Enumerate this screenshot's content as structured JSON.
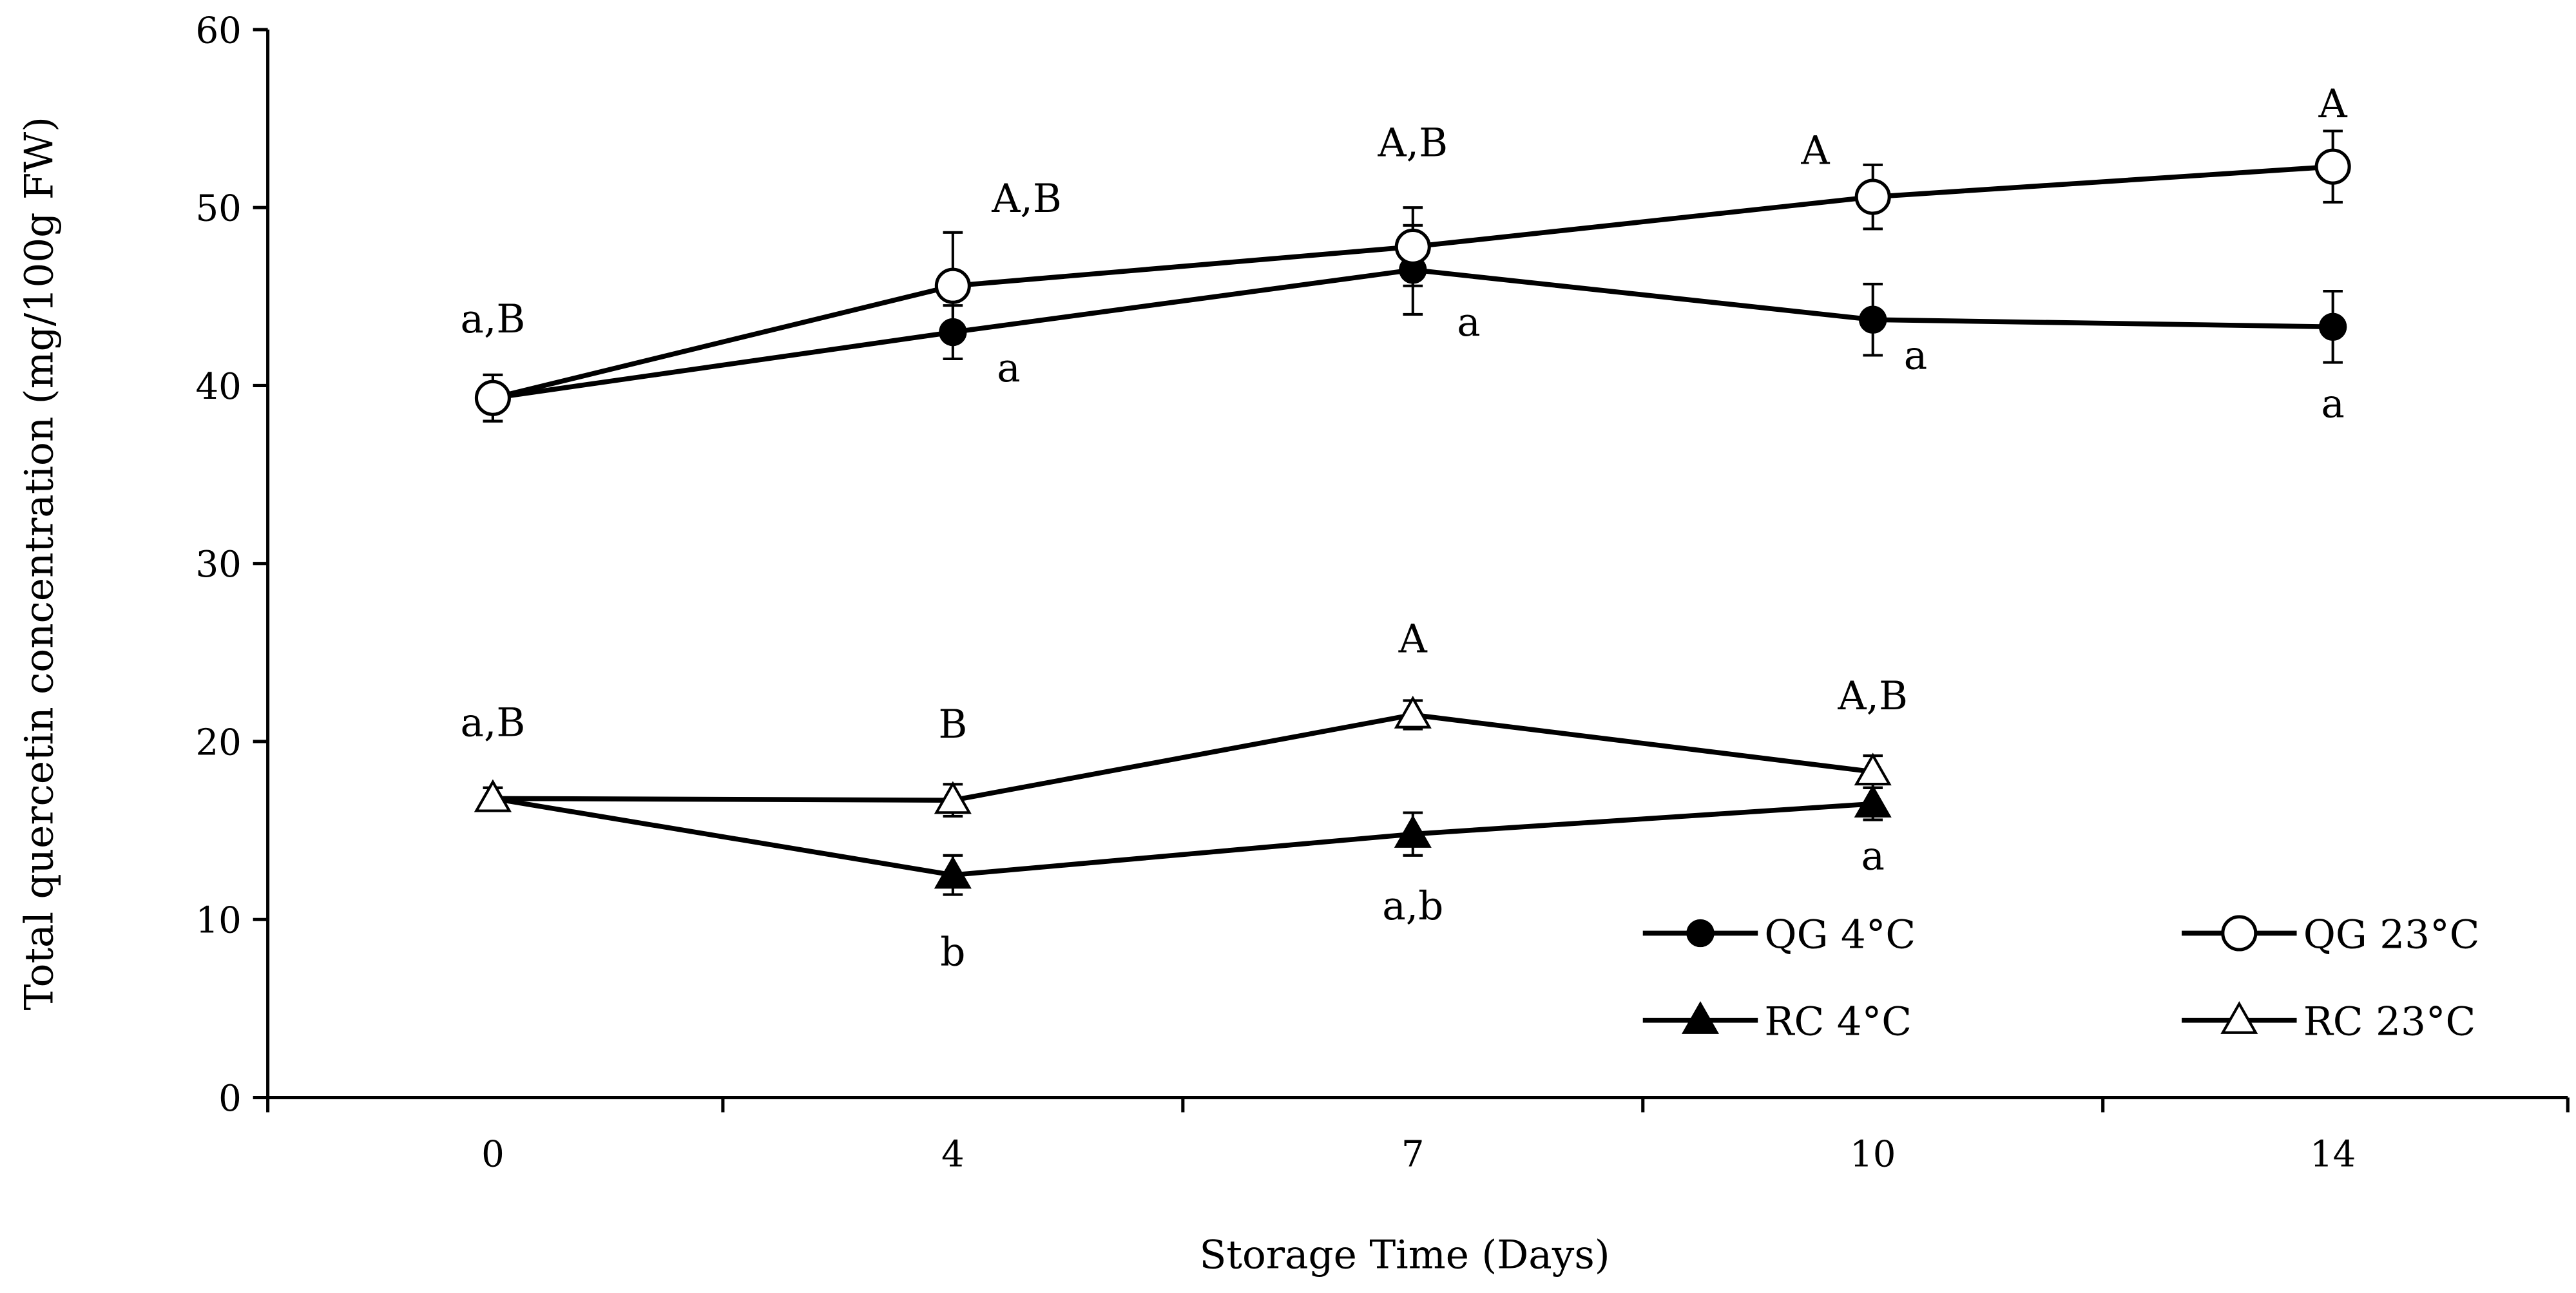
{
  "chart_data": {
    "type": "line",
    "title": "",
    "xlabel": "Storage Time (Days)",
    "ylabel": "Total quercetin concentration  (mg/100g FW)",
    "categories": [
      "0",
      "4",
      "7",
      "10",
      "14"
    ],
    "ylim": [
      0,
      60
    ],
    "yticks": [
      "0",
      "10",
      "20",
      "30",
      "40",
      "50",
      "60"
    ],
    "grid": false,
    "legend_position": "bottom-right",
    "series": [
      {
        "name": "QG 4°C",
        "marker": "circle",
        "fill": "#000000",
        "values": [
          39.3,
          43.0,
          46.5,
          43.7,
          43.3
        ],
        "errors": [
          1.3,
          1.5,
          2.5,
          2.0,
          2.0
        ],
        "annotations": [
          "",
          "a",
          "a",
          "a",
          "a"
        ]
      },
      {
        "name": "QG 23°C",
        "marker": "circle",
        "fill": "#ffffff",
        "values": [
          39.3,
          45.6,
          47.8,
          50.6,
          52.3
        ],
        "errors": [
          1.3,
          3.0,
          2.2,
          1.8,
          2.0
        ],
        "annotations": [
          "a,B",
          "A,B",
          "A,B",
          "A",
          "A"
        ]
      },
      {
        "name": "RC 4°C",
        "marker": "triangle",
        "fill": "#000000",
        "values": [
          16.8,
          12.5,
          14.8,
          16.5,
          null
        ],
        "errors": [
          0.6,
          1.1,
          1.2,
          0.9,
          null
        ],
        "annotations": [
          "",
          "b",
          "a,b",
          "a",
          ""
        ]
      },
      {
        "name": "RC 23°C",
        "marker": "triangle",
        "fill": "#ffffff",
        "values": [
          16.8,
          16.7,
          21.5,
          18.3,
          null
        ],
        "errors": [
          0.6,
          0.9,
          0.8,
          0.9,
          null
        ],
        "annotations": [
          "a,B",
          "B",
          "A",
          "A,B",
          ""
        ]
      }
    ]
  }
}
